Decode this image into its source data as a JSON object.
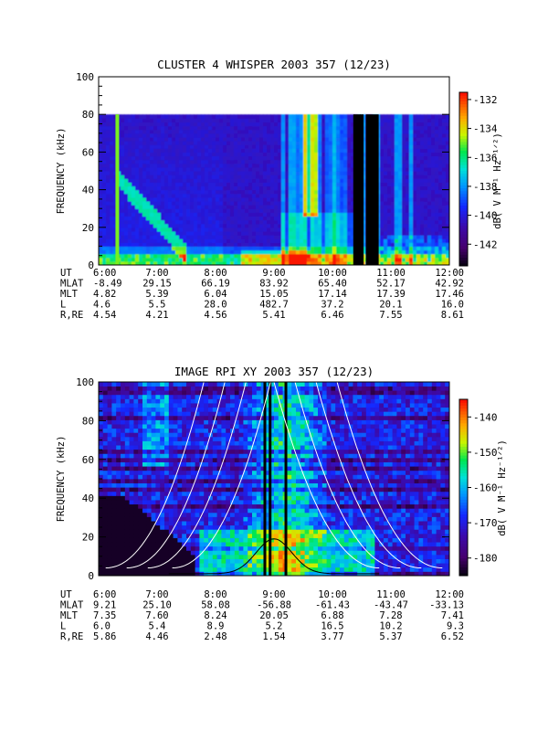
{
  "chart_data": [
    {
      "type": "heatmap",
      "title": "CLUSTER 4 WHISPER 2003 357 (12/23)",
      "ylabel": "FREQUENCY (kHz)",
      "ylim": [
        0,
        100
      ],
      "yticks": [
        "0",
        "20",
        "40",
        "60",
        "80",
        "100"
      ],
      "xlim": [
        "6:00",
        "12:00"
      ],
      "colorbar": {
        "label": "dB( V M⁻¹ Hz⁻¹ᐟ²)",
        "ticks": [
          "-132",
          "-134",
          "-136",
          "-138",
          "-140",
          "-142"
        ],
        "range": [
          -143.5,
          -131.5
        ]
      },
      "data_max_frequency": 80,
      "ephemeris": {
        "row_labels": [
          "UT",
          "MLAT",
          "MLT",
          "L",
          "R,RE"
        ],
        "columns": [
          [
            "6:00",
            "-8.49",
            "4.82",
            "4.6",
            "4.54"
          ],
          [
            "7:00",
            "29.15",
            "5.39",
            "5.5",
            "4.21"
          ],
          [
            "8:00",
            "66.19",
            "6.04",
            "28.0",
            "4.56"
          ],
          [
            "9:00",
            "83.92",
            "15.05",
            "482.7",
            "5.41"
          ],
          [
            "10:00",
            "65.40",
            "17.14",
            "37.2",
            "6.46"
          ],
          [
            "11:00",
            "52.17",
            "17.39",
            "20.1",
            "7.55"
          ],
          [
            "12:00",
            "42.92",
            "17.46",
            "16.0",
            "8.61"
          ]
        ]
      }
    },
    {
      "type": "heatmap",
      "title": "IMAGE RPI XY 2003 357 (12/23)",
      "ylabel": "FREQUENCY (kHz)",
      "ylim": [
        0,
        100
      ],
      "yticks": [
        "0",
        "20",
        "40",
        "60",
        "80",
        "100"
      ],
      "xlim": [
        "6:00",
        "12:00"
      ],
      "colorbar": {
        "label": "dB( V M⁻¹ Hz⁻¹ᐟ²)",
        "ticks": [
          "-140",
          "-150",
          "-160",
          "-170",
          "-180"
        ],
        "range": [
          -185,
          -135
        ]
      },
      "ephemeris": {
        "row_labels": [
          "UT",
          "MLAT",
          "MLT",
          "L",
          "R,RE"
        ],
        "columns": [
          [
            "6:00",
            "9.21",
            "7.35",
            "6.0",
            "5.86"
          ],
          [
            "7:00",
            "25.10",
            "7.60",
            "5.4",
            "4.46"
          ],
          [
            "8:00",
            "58.08",
            "8.24",
            "8.9",
            "2.48"
          ],
          [
            "9:00",
            "-56.88",
            "20.05",
            "5.2",
            "1.54"
          ],
          [
            "10:00",
            "-61.43",
            "6.88",
            "16.5",
            "3.77"
          ],
          [
            "11:00",
            "-43.47",
            "7.28",
            "10.2",
            "5.37"
          ],
          [
            "12:00",
            "-33.13",
            "7.41",
            "9.3",
            "6.52"
          ]
        ]
      }
    }
  ]
}
